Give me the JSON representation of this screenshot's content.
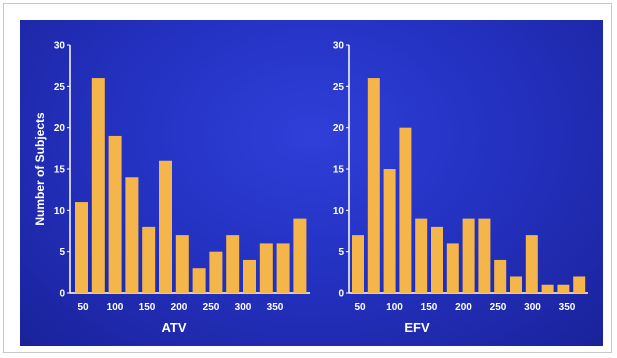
{
  "chart_data": [
    {
      "type": "bar",
      "title": "",
      "xlabel": "ATV",
      "ylabel": "Number of Subjects",
      "ylim": [
        0,
        30
      ],
      "yticks": [
        "0",
        "5",
        "10",
        "15",
        "20",
        "25",
        "30"
      ],
      "xticks": [
        "50",
        "100",
        "150",
        "200",
        "250",
        "300",
        "350"
      ],
      "values": [
        11,
        26,
        19,
        14,
        8,
        16,
        7,
        3,
        5,
        7,
        4,
        6,
        6,
        9
      ],
      "bar_color": "#f4b54a"
    },
    {
      "type": "bar",
      "title": "",
      "xlabel": "EFV",
      "ylabel": "",
      "ylim": [
        0,
        30
      ],
      "yticks": [
        "0",
        "5",
        "10",
        "15",
        "20",
        "25",
        "30"
      ],
      "xticks": [
        "50",
        "100",
        "150",
        "200",
        "250",
        "300",
        "350"
      ],
      "values": [
        7,
        26,
        15,
        20,
        9,
        8,
        6,
        9,
        9,
        4,
        2,
        7,
        1,
        1,
        2
      ],
      "bar_color": "#f4b54a"
    }
  ]
}
